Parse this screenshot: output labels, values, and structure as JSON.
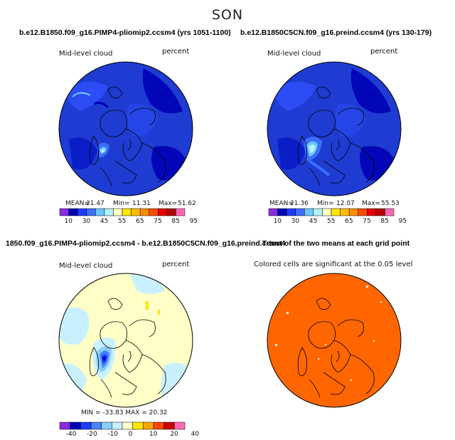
{
  "season": "SON",
  "panels": [
    {
      "title": "b.e12.B1850.f09_g16.PIMP4-pliomip2.ccsm4 (yrs 1051-1100)",
      "var_label": "Mid-level cloud",
      "units": "percent",
      "stats": {
        "mean_label": "MEAN=",
        "mean": "21.47",
        "min_label": "Min=",
        "min": "11.31",
        "max_label": "Max=",
        "max": "51.62"
      },
      "colorbar_labels": [
        "10",
        "30",
        "45",
        "55",
        "65",
        "75",
        "85",
        "95"
      ]
    },
    {
      "title": "b.e12.B1850C5CN.f09_g16.preind.ccsm4 (yrs 130-179)",
      "var_label": "Mid-level cloud",
      "units": "percent",
      "stats": {
        "mean_label": "MEAN=",
        "mean": "21.36",
        "min_label": "Min=",
        "min": "12.07",
        "max_label": "Max=",
        "max": "55.53"
      },
      "colorbar_labels": [
        "10",
        "30",
        "45",
        "55",
        "65",
        "75",
        "85",
        "95"
      ]
    },
    {
      "title": "1850.f09_g16.PIMP4-pliomip2.ccsm4 - b.e12.B1850C5CN.f09_g16.preind.ccsm4",
      "var_label": "Mid-level cloud",
      "units": "percent",
      "stats": {
        "text": "MIN = -33.83  MAX = 20.32"
      },
      "colorbar_labels": [
        "-40",
        "-20",
        "-10",
        "0",
        "10",
        "20",
        "40"
      ]
    },
    {
      "title": "T-test of the two means at each grid point",
      "note": "Colored cells are significant at the 0.05 level"
    }
  ],
  "colors": {
    "abs_scale": [
      "#8a2be2",
      "#0000b4",
      "#1e3cff",
      "#3c6eff",
      "#6ec8ff",
      "#b4f0fa",
      "#ffffc8",
      "#ffe600",
      "#ffbe00",
      "#ff8c00",
      "#ff4b00",
      "#e60000",
      "#b40000",
      "#ff69b4"
    ],
    "diff_scale": [
      "#8a2be2",
      "#0000b4",
      "#1e3cff",
      "#4682ff",
      "#87cefa",
      "#c8f0ff",
      "#ffffc8",
      "#ffe600",
      "#ffa500",
      "#ff4500",
      "#c80000",
      "#ff69b4"
    ],
    "map_bg_abs": "#1e3cd2",
    "map_bg_diff": "#ffffc8",
    "ttest_fill": "#ff6600"
  }
}
